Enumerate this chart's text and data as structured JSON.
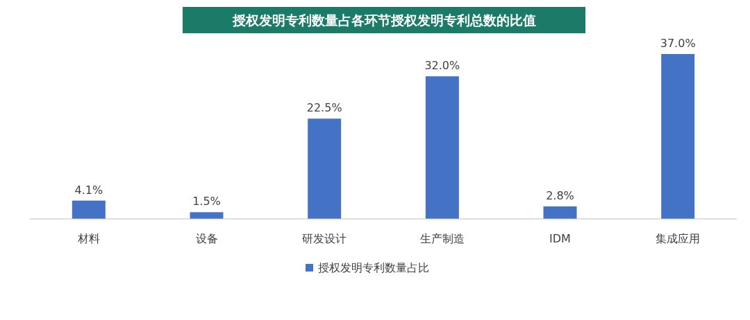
{
  "chart_data": {
    "type": "bar",
    "title": "授权发明专利数量占各环节授权发明专利总数的比值",
    "categories": [
      "材料",
      "设备",
      "研发设计",
      "生产制造",
      "IDM",
      "集成应用"
    ],
    "series": [
      {
        "name": "授权发明专利数量占比",
        "color": "#4472c4",
        "values": [
          4.1,
          1.5,
          22.5,
          32.0,
          2.8,
          37.0
        ],
        "value_labels": [
          "4.1%",
          "1.5%",
          "22.5%",
          "32.0%",
          "2.8%",
          "37.0%"
        ]
      }
    ],
    "legend": "bottom"
  }
}
